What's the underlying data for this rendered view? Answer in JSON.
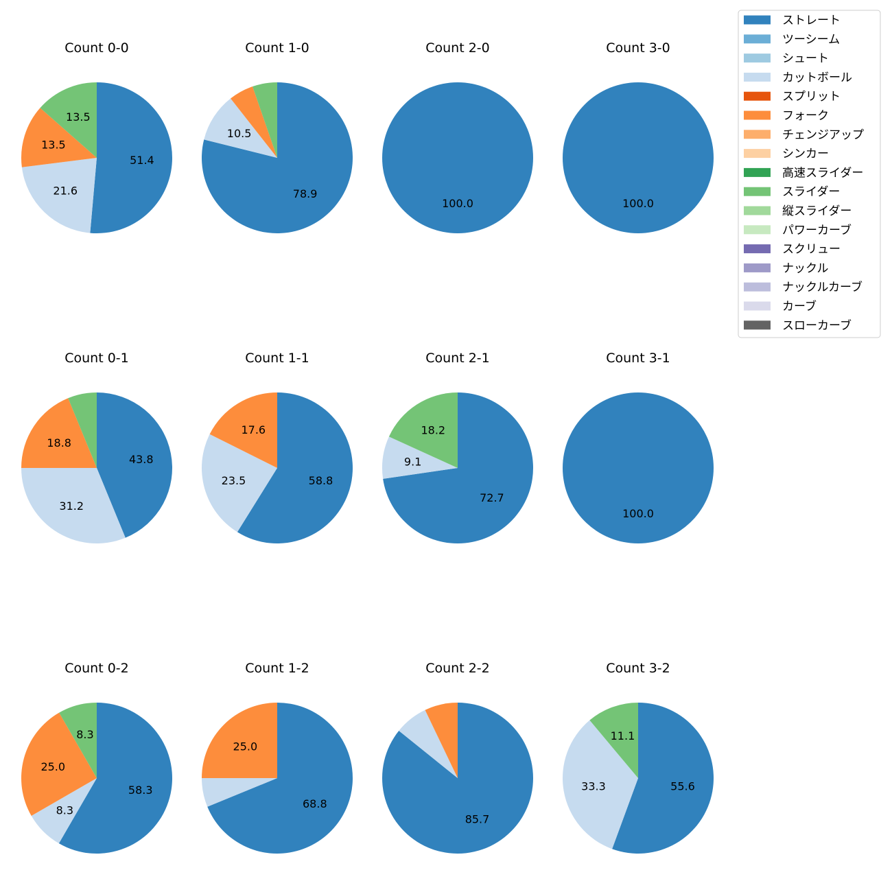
{
  "legend": {
    "position": "top-right",
    "items": [
      {
        "label": "ストレート",
        "color": "#3182bd"
      },
      {
        "label": "ツーシーム",
        "color": "#6baed6"
      },
      {
        "label": "シュート",
        "color": "#9ecae1"
      },
      {
        "label": "カットボール",
        "color": "#c6dbef"
      },
      {
        "label": "スプリット",
        "color": "#e6550d"
      },
      {
        "label": "フォーク",
        "color": "#fd8d3c"
      },
      {
        "label": "チェンジアップ",
        "color": "#fdae6b"
      },
      {
        "label": "シンカー",
        "color": "#fdd0a2"
      },
      {
        "label": "高速スライダー",
        "color": "#31a354"
      },
      {
        "label": "スライダー",
        "color": "#74c476"
      },
      {
        "label": "縦スライダー",
        "color": "#a1d99b"
      },
      {
        "label": "パワーカーブ",
        "color": "#c7e9c0"
      },
      {
        "label": "スクリュー",
        "color": "#756bb1"
      },
      {
        "label": "ナックル",
        "color": "#9e9ac8"
      },
      {
        "label": "ナックルカーブ",
        "color": "#bcbddc"
      },
      {
        "label": "カーブ",
        "color": "#dadaeb"
      },
      {
        "label": "スローカーブ",
        "color": "#636363"
      }
    ]
  },
  "chart_data": [
    {
      "type": "pie",
      "title": "Count 0-0",
      "slices": [
        {
          "pitch": "ストレート",
          "value": 51.4,
          "label": "51.4"
        },
        {
          "pitch": "カットボール",
          "value": 21.6,
          "label": "21.6"
        },
        {
          "pitch": "フォーク",
          "value": 13.5,
          "label": "13.5"
        },
        {
          "pitch": "スライダー",
          "value": 13.5,
          "label": "13.5"
        }
      ]
    },
    {
      "type": "pie",
      "title": "Count 1-0",
      "slices": [
        {
          "pitch": "ストレート",
          "value": 78.9,
          "label": "78.9"
        },
        {
          "pitch": "カットボール",
          "value": 10.5,
          "label": "10.5"
        },
        {
          "pitch": "フォーク",
          "value": 5.3,
          "label": ""
        },
        {
          "pitch": "スライダー",
          "value": 5.3,
          "label": ""
        }
      ]
    },
    {
      "type": "pie",
      "title": "Count 2-0",
      "slices": [
        {
          "pitch": "ストレート",
          "value": 100.0,
          "label": "100.0"
        }
      ]
    },
    {
      "type": "pie",
      "title": "Count 3-0",
      "slices": [
        {
          "pitch": "ストレート",
          "value": 100.0,
          "label": "100.0"
        }
      ]
    },
    {
      "type": "pie",
      "title": "Count 0-1",
      "slices": [
        {
          "pitch": "ストレート",
          "value": 43.8,
          "label": "43.8"
        },
        {
          "pitch": "カットボール",
          "value": 31.2,
          "label": "31.2"
        },
        {
          "pitch": "フォーク",
          "value": 18.8,
          "label": "18.8"
        },
        {
          "pitch": "スライダー",
          "value": 6.2,
          "label": ""
        }
      ]
    },
    {
      "type": "pie",
      "title": "Count 1-1",
      "slices": [
        {
          "pitch": "ストレート",
          "value": 58.8,
          "label": "58.8"
        },
        {
          "pitch": "カットボール",
          "value": 23.5,
          "label": "23.5"
        },
        {
          "pitch": "フォーク",
          "value": 17.6,
          "label": "17.6"
        }
      ]
    },
    {
      "type": "pie",
      "title": "Count 2-1",
      "slices": [
        {
          "pitch": "ストレート",
          "value": 72.7,
          "label": "72.7"
        },
        {
          "pitch": "カットボール",
          "value": 9.1,
          "label": "9.1"
        },
        {
          "pitch": "スライダー",
          "value": 18.2,
          "label": "18.2"
        }
      ]
    },
    {
      "type": "pie",
      "title": "Count 3-1",
      "slices": [
        {
          "pitch": "ストレート",
          "value": 100.0,
          "label": "100.0"
        }
      ]
    },
    {
      "type": "pie",
      "title": "Count 0-2",
      "slices": [
        {
          "pitch": "ストレート",
          "value": 58.3,
          "label": "58.3"
        },
        {
          "pitch": "カットボール",
          "value": 8.3,
          "label": "8.3"
        },
        {
          "pitch": "フォーク",
          "value": 25.0,
          "label": "25.0"
        },
        {
          "pitch": "スライダー",
          "value": 8.3,
          "label": "8.3"
        }
      ]
    },
    {
      "type": "pie",
      "title": "Count 1-2",
      "slices": [
        {
          "pitch": "ストレート",
          "value": 68.8,
          "label": "68.8"
        },
        {
          "pitch": "カットボール",
          "value": 6.2,
          "label": ""
        },
        {
          "pitch": "フォーク",
          "value": 25.0,
          "label": "25.0"
        }
      ]
    },
    {
      "type": "pie",
      "title": "Count 2-2",
      "slices": [
        {
          "pitch": "ストレート",
          "value": 85.7,
          "label": "85.7"
        },
        {
          "pitch": "カットボール",
          "value": 7.1,
          "label": ""
        },
        {
          "pitch": "フォーク",
          "value": 7.1,
          "label": ""
        }
      ]
    },
    {
      "type": "pie",
      "title": "Count 3-2",
      "slices": [
        {
          "pitch": "ストレート",
          "value": 55.6,
          "label": "55.6"
        },
        {
          "pitch": "カットボール",
          "value": 33.3,
          "label": "33.3"
        },
        {
          "pitch": "スライダー",
          "value": 11.1,
          "label": "11.1"
        }
      ]
    }
  ]
}
